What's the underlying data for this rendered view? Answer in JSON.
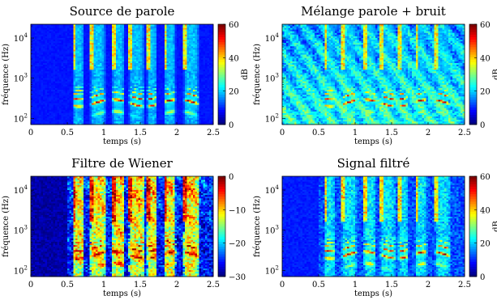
{
  "figure": {
    "colormap": "jet",
    "colors": {
      "background": "#ffffff",
      "axis": "#000000",
      "jet_low": "#00008f",
      "jet_high": "#800000"
    }
  },
  "chart_data": [
    {
      "type": "heatmap",
      "title": "Source de parole",
      "xlabel": "temps (s)",
      "ylabel": "fréquence (Hz)",
      "xlim": [
        0,
        2.5
      ],
      "xticks": [
        "0",
        "0.5",
        "1",
        "1.5",
        "2",
        "2.5"
      ],
      "ylim": [
        70,
        22050
      ],
      "yscale": "log",
      "yticks": [
        {
          "value": 100,
          "label": "10",
          "exp": "2"
        },
        {
          "value": 1000,
          "label": "10",
          "exp": "3"
        },
        {
          "value": 10000,
          "label": "10",
          "exp": "4"
        }
      ],
      "colorbar": {
        "label": "dB",
        "range": [
          0,
          60
        ],
        "ticks": [
          "0",
          "20",
          "40",
          "60"
        ]
      },
      "content": "speech",
      "noise_level": 0,
      "speech_gain": 1.0
    },
    {
      "type": "heatmap",
      "title": "Mélange parole + bruit",
      "xlabel": "temps (s)",
      "ylabel": "fréquence (Hz)",
      "xlim": [
        0,
        2.5
      ],
      "xticks": [
        "0",
        "0.5",
        "1",
        "1.5",
        "2",
        "2.5"
      ],
      "ylim": [
        70,
        22050
      ],
      "yscale": "log",
      "yticks": [
        {
          "value": 100,
          "label": "10",
          "exp": "2"
        },
        {
          "value": 1000,
          "label": "10",
          "exp": "3"
        },
        {
          "value": 10000,
          "label": "10",
          "exp": "4"
        }
      ],
      "colorbar": {
        "label": "dB",
        "range": [
          0,
          60
        ],
        "ticks": [
          "0",
          "20",
          "40",
          "60"
        ]
      },
      "content": "mixture",
      "noise_level": 1,
      "speech_gain": 1.0
    },
    {
      "type": "heatmap",
      "title": "Filtre de Wiener",
      "xlabel": "temps (s)",
      "ylabel": "fréquence (Hz)",
      "xlim": [
        0,
        2.5
      ],
      "xticks": [
        "0",
        "0.5",
        "1",
        "1.5",
        "2",
        "2.5"
      ],
      "ylim": [
        70,
        22050
      ],
      "yscale": "log",
      "yticks": [
        {
          "value": 100,
          "label": "10",
          "exp": "2"
        },
        {
          "value": 1000,
          "label": "10",
          "exp": "3"
        },
        {
          "value": 10000,
          "label": "10",
          "exp": "4"
        }
      ],
      "colorbar": {
        "label": "",
        "range": [
          -30,
          0
        ],
        "ticks": [
          "−30",
          "−20",
          "−10",
          "0"
        ]
      },
      "content": "wiener",
      "noise_level": 0,
      "speech_gain": 1.0
    },
    {
      "type": "heatmap",
      "title": "Signal filtré",
      "xlabel": "temps (s)",
      "ylabel": "fréquence (Hz)",
      "xlim": [
        0,
        2.5
      ],
      "xticks": [
        "0",
        "0.5",
        "1",
        "1.5",
        "2",
        "2.5"
      ],
      "ylim": [
        70,
        22050
      ],
      "yscale": "log",
      "yticks": [
        {
          "value": 100,
          "label": "10",
          "exp": "2"
        },
        {
          "value": 1000,
          "label": "10",
          "exp": "3"
        },
        {
          "value": 10000,
          "label": "10",
          "exp": "4"
        }
      ],
      "colorbar": {
        "label": "dB",
        "range": [
          0,
          60
        ],
        "ticks": [
          "0",
          "20",
          "40",
          "60"
        ]
      },
      "content": "filtered",
      "noise_level": 0.15,
      "speech_gain": 0.9
    }
  ]
}
